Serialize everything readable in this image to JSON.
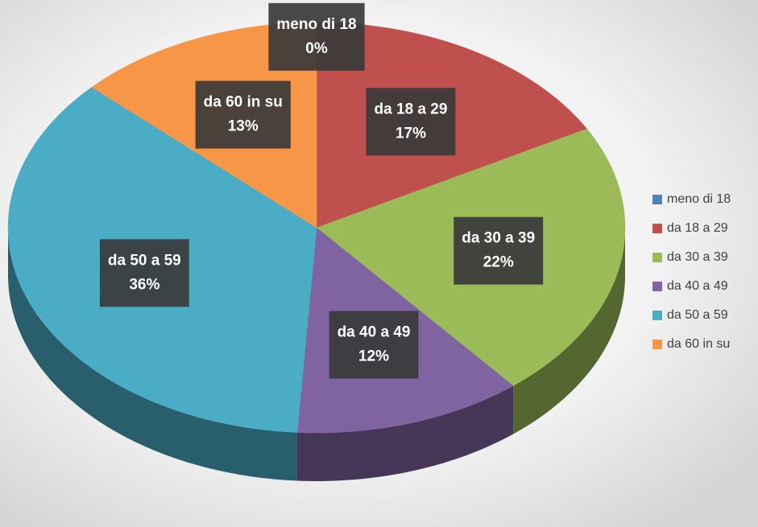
{
  "chart_data": {
    "type": "pie",
    "categories": [
      "meno di 18",
      "da 18 a 29",
      "da 30 a 39",
      "da 40 a 49",
      "da 50 a 59",
      "da 60 in su"
    ],
    "values": [
      0,
      17,
      22,
      12,
      36,
      13
    ],
    "value_labels": [
      "0%",
      "17%",
      "22%",
      "12%",
      "36%",
      "13%"
    ],
    "colors": [
      "#4f81bd",
      "#c0504d",
      "#9bbb59",
      "#8064a2",
      "#4bacc6",
      "#f79646"
    ],
    "legend": "right"
  }
}
